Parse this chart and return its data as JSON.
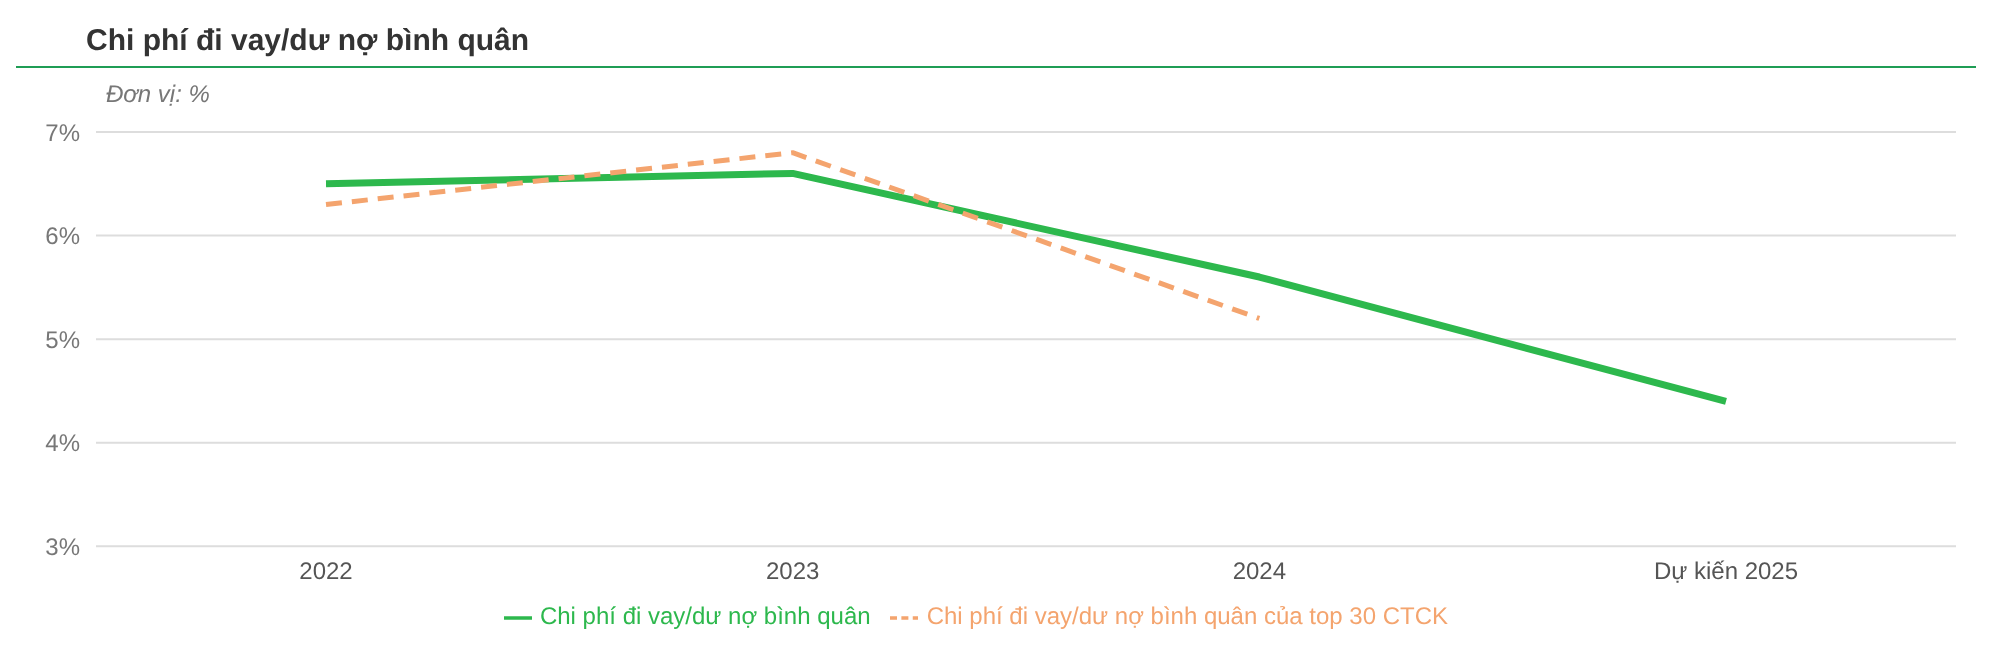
{
  "chart_data": {
    "type": "line",
    "title": "Chi phí đi vay/dư nợ bình quân",
    "subtitle": "Đơn vị: %",
    "categories": [
      "2022",
      "2023",
      "2024",
      "Dự kiến 2025"
    ],
    "series": [
      {
        "name": "Chi phí đi vay/dư nợ bình quân",
        "color": "#2db84d",
        "values": [
          6.5,
          6.6,
          5.6,
          4.4
        ],
        "line_style": "solid"
      },
      {
        "name": "Chi phí đi vay/dư nợ bình quân của top 30 CTCK",
        "color": "#f4a46e",
        "values": [
          6.3,
          6.8,
          5.2,
          null
        ],
        "line_style": "dashed"
      }
    ],
    "ylim": [
      3,
      7
    ],
    "yticks": [
      {
        "value": 3,
        "label": "3%"
      },
      {
        "value": 4,
        "label": "4%"
      },
      {
        "value": 5,
        "label": "5%"
      },
      {
        "value": 6,
        "label": "6%"
      },
      {
        "value": 7,
        "label": "7%"
      }
    ],
    "grid": "y",
    "legend": "bottom",
    "marker": "none"
  }
}
